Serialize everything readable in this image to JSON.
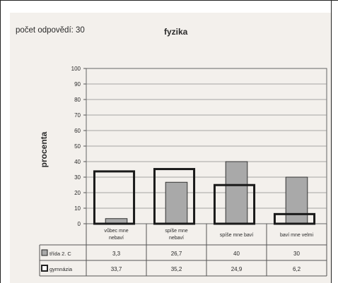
{
  "header": {
    "responses": "počet odpovědí: 30",
    "title": "fyzika"
  },
  "chart_data": {
    "type": "bar",
    "title": "fyzika",
    "ylabel": "procenta",
    "ylim": [
      0,
      100
    ],
    "yticks": [
      "0",
      "10",
      "20",
      "30",
      "40",
      "50",
      "60",
      "70",
      "80",
      "90",
      "100"
    ],
    "grid": true,
    "categories": [
      [
        "vůbec mne",
        "nebaví"
      ],
      [
        "spíše mne",
        "nebaví"
      ],
      [
        "spíše mne baví"
      ],
      [
        "baví mne velmi"
      ]
    ],
    "series": [
      {
        "name": "třída 2. C",
        "style": "filled",
        "color": "#a9a9a9",
        "values": [
          3.3,
          26.7,
          40,
          30
        ],
        "labels": [
          "3,3",
          "26,7",
          "40",
          "30"
        ]
      },
      {
        "name": "gymnázia",
        "style": "outline",
        "color": "#1a1a1a",
        "values": [
          33.7,
          35.2,
          24.9,
          6.2
        ],
        "labels": [
          "33,7",
          "35,2",
          "24,9",
          "6,2"
        ]
      }
    ]
  }
}
